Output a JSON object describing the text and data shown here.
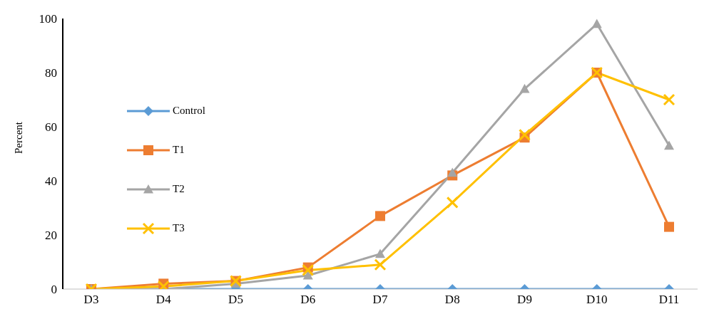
{
  "chart_data": {
    "type": "line",
    "ylabel": "Percent",
    "categories": [
      "D3",
      "D4",
      "D5",
      "D6",
      "D7",
      "D8",
      "D9",
      "D10",
      "D11"
    ],
    "series": [
      {
        "name": "Control",
        "color": "#5b9bd5",
        "marker": "diamond",
        "values": [
          0,
          0,
          0,
          0,
          0,
          0,
          0,
          0,
          0
        ]
      },
      {
        "name": "T1",
        "color": "#ed7d31",
        "marker": "square",
        "values": [
          0,
          2,
          3,
          8,
          27,
          42,
          56,
          80,
          23
        ]
      },
      {
        "name": "T2",
        "color": "#a5a5a5",
        "marker": "triangle",
        "values": [
          0,
          0,
          2,
          5,
          13,
          43,
          74,
          98,
          53
        ]
      },
      {
        "name": "T3",
        "color": "#ffc000",
        "marker": "cross",
        "values": [
          0,
          1,
          3,
          7,
          9,
          32,
          57,
          80,
          70
        ]
      }
    ],
    "ylim": [
      0,
      100
    ],
    "yticks": [
      0,
      20,
      40,
      60,
      80,
      100
    ],
    "grid": false,
    "legend": "left",
    "line_style": "solid"
  }
}
